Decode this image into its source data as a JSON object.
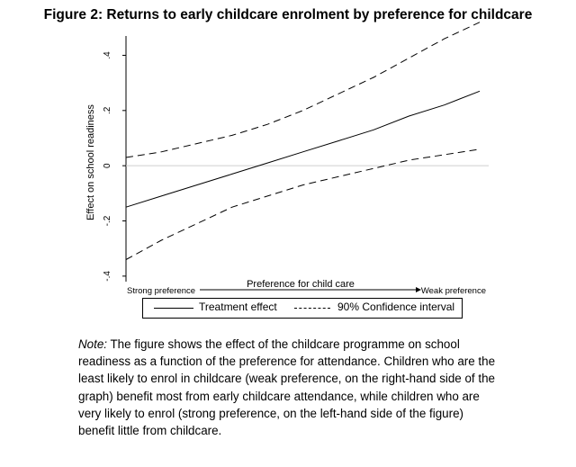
{
  "figure": {
    "title": "Figure 2: Returns to early childcare enrolment by preference for childcare"
  },
  "chart_data": {
    "type": "line",
    "title": "",
    "xlabel": "Preference for child care",
    "x_low_label": "Strong preference",
    "x_high_label": "Weak preference",
    "ylabel": "Effect on school readiness",
    "ylim": [
      -0.42,
      0.47
    ],
    "yticks": [
      -0.4,
      -0.2,
      0,
      0.2,
      0.4
    ],
    "ytick_labels": [
      "-.4",
      "-.2",
      "0",
      ".2",
      ".4"
    ],
    "xlim": [
      0,
      1
    ],
    "grid": false,
    "zero_reference_line": true,
    "legend_position": "bottom",
    "series": [
      {
        "name": "Treatment effect",
        "style": "solid",
        "color": "#000000",
        "x": [
          0,
          0.1,
          0.2,
          0.3,
          0.4,
          0.5,
          0.6,
          0.7,
          0.8,
          0.9,
          1.0
        ],
        "y": [
          -0.15,
          -0.11,
          -0.07,
          -0.03,
          0.01,
          0.05,
          0.09,
          0.13,
          0.18,
          0.22,
          0.27
        ]
      },
      {
        "name": "90% Confidence interval",
        "style": "dashed",
        "color": "#000000",
        "x": [
          0,
          0.1,
          0.2,
          0.3,
          0.4,
          0.5,
          0.6,
          0.7,
          0.8,
          0.9,
          1.0
        ],
        "y": [
          0.03,
          0.05,
          0.08,
          0.11,
          0.15,
          0.2,
          0.26,
          0.32,
          0.39,
          0.46,
          0.52
        ]
      },
      {
        "name": "",
        "style": "dashed",
        "color": "#000000",
        "x": [
          0,
          0.1,
          0.2,
          0.3,
          0.4,
          0.5,
          0.6,
          0.7,
          0.8,
          0.9,
          1.0
        ],
        "y": [
          -0.34,
          -0.27,
          -0.21,
          -0.15,
          -0.11,
          -0.07,
          -0.04,
          -0.01,
          0.02,
          0.04,
          0.06
        ]
      }
    ]
  },
  "note": {
    "label": "Note:",
    "text": "The figure shows the effect of the childcare programme on school readiness as a function of the preference for attendance. Children who are the least likely to enrol in childcare (weak preference, on the right-hand side of the graph) benefit most from early childcare attendance, while children who are very likely to enrol (strong preference, on the left-hand side of the figure) benefit little from childcare."
  }
}
